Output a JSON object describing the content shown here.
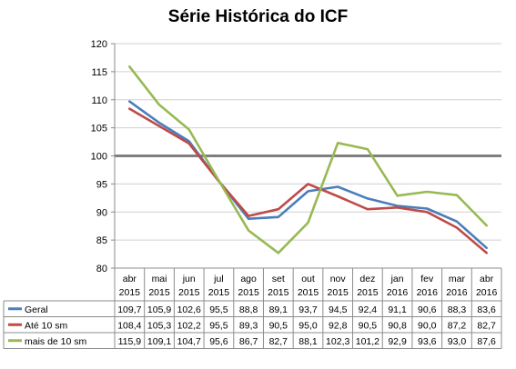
{
  "chart_data": {
    "type": "line",
    "title": "Série Histórica do ICF",
    "ylim": [
      80,
      120
    ],
    "yticks": [
      80,
      85,
      90,
      95,
      100,
      105,
      110,
      115,
      120
    ],
    "reference_line": 100,
    "grid": true,
    "legend": "table-left",
    "categories": [
      [
        "abr",
        "2015"
      ],
      [
        "mai",
        "2015"
      ],
      [
        "jun",
        "2015"
      ],
      [
        "jul",
        "2015"
      ],
      [
        "ago",
        "2015"
      ],
      [
        "set",
        "2015"
      ],
      [
        "out",
        "2015"
      ],
      [
        "nov",
        "2015"
      ],
      [
        "dez",
        "2015"
      ],
      [
        "jan",
        "2016"
      ],
      [
        "fev",
        "2016"
      ],
      [
        "mar",
        "2016"
      ],
      [
        "abr",
        "2016"
      ]
    ],
    "series": [
      {
        "name": "Geral",
        "color": "#4a7ebb",
        "values": [
          109.7,
          105.9,
          102.6,
          95.5,
          88.8,
          89.1,
          93.7,
          94.5,
          92.4,
          91.1,
          90.6,
          88.3,
          83.6
        ],
        "labels": [
          "109,7",
          "105,9",
          "102,6",
          "95,5",
          "88,8",
          "89,1",
          "93,7",
          "94,5",
          "92,4",
          "91,1",
          "90,6",
          "88,3",
          "83,6"
        ]
      },
      {
        "name": "Até 10 sm",
        "color": "#be4b48",
        "values": [
          108.4,
          105.3,
          102.2,
          95.5,
          89.3,
          90.5,
          95.0,
          92.8,
          90.5,
          90.8,
          90.0,
          87.2,
          82.7
        ],
        "labels": [
          "108,4",
          "105,3",
          "102,2",
          "95,5",
          "89,3",
          "90,5",
          "95,0",
          "92,8",
          "90,5",
          "90,8",
          "90,0",
          "87,2",
          "82,7"
        ]
      },
      {
        "name": "mais de 10 sm",
        "color": "#98b954",
        "values": [
          115.9,
          109.1,
          104.7,
          95.6,
          86.7,
          82.7,
          88.1,
          102.3,
          101.2,
          92.9,
          93.6,
          93.0,
          87.6
        ],
        "labels": [
          "115,9",
          "109,1",
          "104,7",
          "95,6",
          "86,7",
          "82,7",
          "88,1",
          "102,3",
          "101,2",
          "92,9",
          "93,6",
          "93,0",
          "87,6"
        ]
      }
    ]
  }
}
